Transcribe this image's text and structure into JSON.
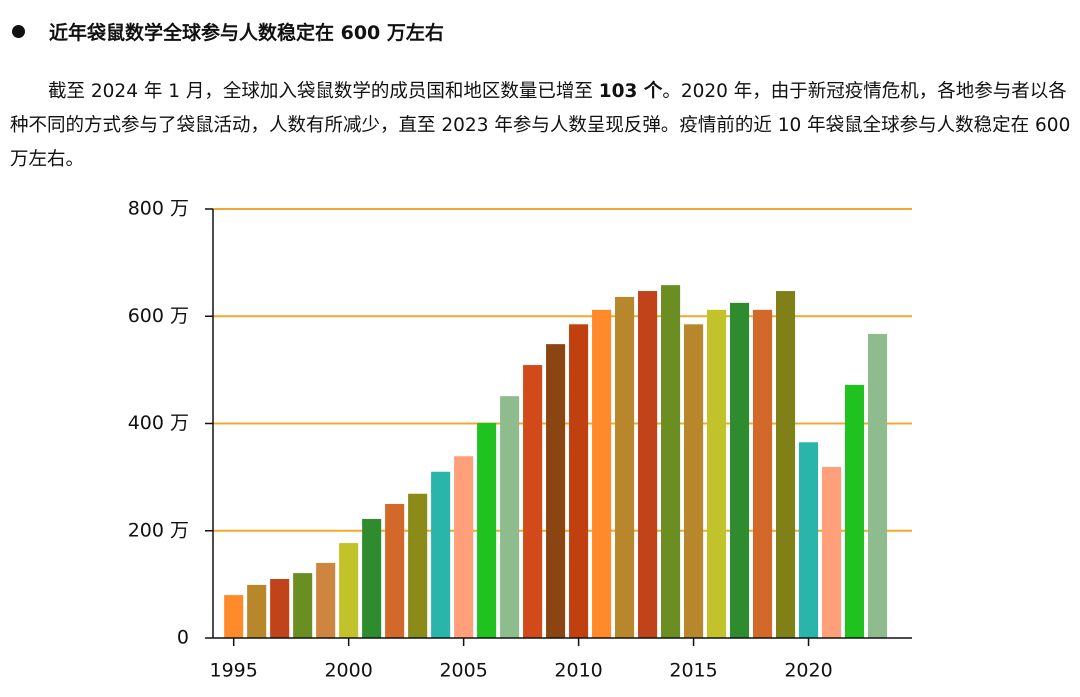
{
  "heading": "近年袋鼠数学全球参与人数稳定在 600 万左右",
  "paragraph": [
    "截至 2024 年 1 月，全球加入袋鼠数学的成员国和地区数量已增至 ",
    "103 个",
    "。2020 年，由于新冠疫情危机，各地参与者以各种不同的方式参与了袋鼠活动，人数有所减少，直至 2023 年参与人数呈现反弹。疫情前的近 10 年袋鼠全球参与人数稳定在 600 万左右。"
  ],
  "chart_data": {
    "type": "bar",
    "x": [
      1995,
      1996,
      1997,
      1998,
      1999,
      2000,
      2001,
      2002,
      2003,
      2004,
      2005,
      2006,
      2007,
      2008,
      2009,
      2010,
      2011,
      2012,
      2013,
      2014,
      2015,
      2016,
      2017,
      2018,
      2019,
      2020,
      2021,
      2022,
      2023
    ],
    "values": [
      80,
      99,
      110,
      121,
      140,
      177,
      222,
      250,
      269,
      310,
      339,
      401,
      451,
      509,
      548,
      585,
      612,
      636,
      647,
      658,
      585,
      612,
      625,
      612,
      647,
      365,
      319,
      472,
      567
    ],
    "colors": [
      "#ff8a2a",
      "#b8862b",
      "#c0431a",
      "#6b8e23",
      "#cd853f",
      "#c2c22a",
      "#2e8b2e",
      "#d2692a",
      "#8b8b1a",
      "#2ab5aa",
      "#ffa07a",
      "#1fc21f",
      "#8fbc8f",
      "#d24a1a",
      "#8b4513",
      "#c04010",
      "#ff8a2a",
      "#b8862b",
      "#c0431a",
      "#6b8e23",
      "#b8862b",
      "#c2c22a",
      "#2e8b2e",
      "#d2692a",
      "#808018",
      "#2ab5aa",
      "#ffa07a",
      "#1fc21f",
      "#8fbc8f"
    ],
    "xlim": [
      1994.1,
      2024.5
    ],
    "xticks": [
      1995,
      2000,
      2005,
      2010,
      2015,
      2020
    ],
    "ylim": [
      0,
      800
    ],
    "yticks": [
      0,
      {
        "value": 200,
        "label": "200 万"
      },
      {
        "value": 400,
        "label": "400 万"
      },
      {
        "value": 600,
        "label": "600 万"
      },
      {
        "value": 800,
        "label": "800 万"
      }
    ],
    "grid": true,
    "grid_color": "#f0a830"
  }
}
